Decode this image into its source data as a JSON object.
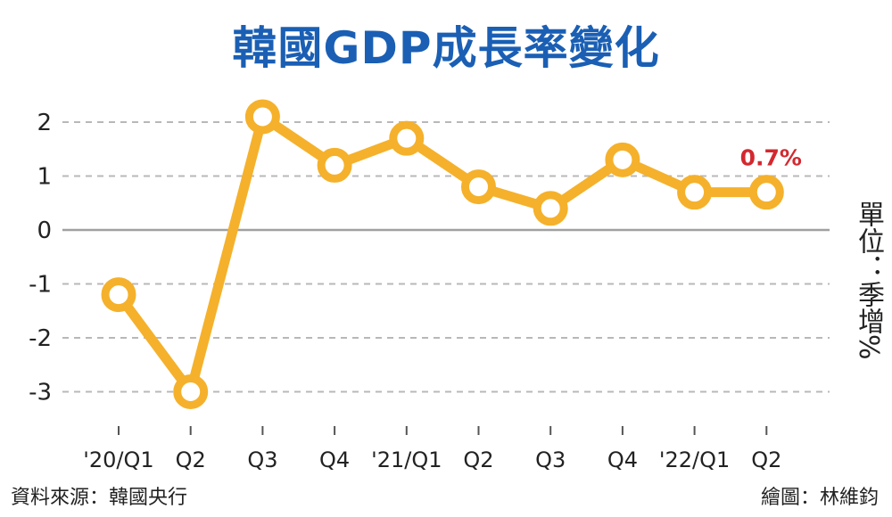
{
  "chart_data": {
    "type": "line",
    "title": "韓國GDP成長率變化",
    "unit_label": "單位：季增%",
    "categories": [
      "'20/Q1",
      "Q2",
      "Q3",
      "Q4",
      "'21/Q1",
      "Q2",
      "Q3",
      "Q4",
      "'22/Q1",
      "Q2"
    ],
    "series": [
      {
        "values": [
          -1.2,
          -3.0,
          2.1,
          1.2,
          1.7,
          0.8,
          0.4,
          1.3,
          0.7,
          0.7
        ]
      }
    ],
    "yticks": [
      2,
      1,
      0,
      -1,
      -2,
      -3
    ],
    "ylim": [
      -3.8,
      2.4
    ],
    "grid": true,
    "data_label": {
      "index": 9,
      "text": "0.7%"
    },
    "colors": {
      "line": "#f5b12b",
      "title": "#1a5fb4",
      "label": "#d3282f",
      "grid": "#b8b8b8"
    }
  },
  "footer": {
    "source": "資料來源：韓國央行",
    "credit": "繪圖：林維鈞"
  }
}
